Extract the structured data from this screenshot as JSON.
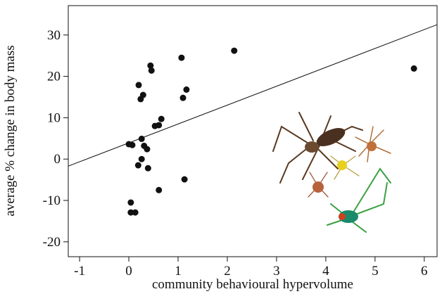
{
  "chart_data": {
    "type": "scatter",
    "x_label": "community behavioural hypervolume",
    "y_label": "average % change in body mass",
    "x": [
      0.0,
      0.07,
      0.04,
      0.04,
      0.13,
      0.19,
      0.2,
      0.24,
      0.29,
      0.26,
      0.26,
      0.31,
      0.37,
      0.39,
      0.44,
      0.46,
      0.53,
      0.61,
      0.66,
      0.61,
      1.07,
      1.1,
      1.17,
      1.13,
      2.14,
      5.79
    ],
    "values": [
      3.6,
      3.4,
      -10.5,
      -12.9,
      -12.9,
      -1.5,
      17.9,
      14.5,
      15.5,
      4.9,
      0,
      3.2,
      2.4,
      -2.2,
      22.6,
      21.4,
      8.0,
      8.2,
      9.7,
      -7.5,
      24.5,
      14.8,
      16.8,
      -4.9,
      26.2,
      21.9
    ],
    "color": "#111111",
    "trendline": {
      "x": [
        -1.23,
        6.26
      ],
      "values": [
        -1.7,
        32.5
      ]
    },
    "xlim": [
      -1.23,
      6.26
    ],
    "xticks": [
      -1,
      0,
      1,
      2,
      3,
      4,
      5,
      6
    ],
    "ylim": [
      -23.6,
      37.1
    ],
    "yticks": [
      -20,
      -10,
      0,
      10,
      20,
      30
    ],
    "grid": false
  }
}
